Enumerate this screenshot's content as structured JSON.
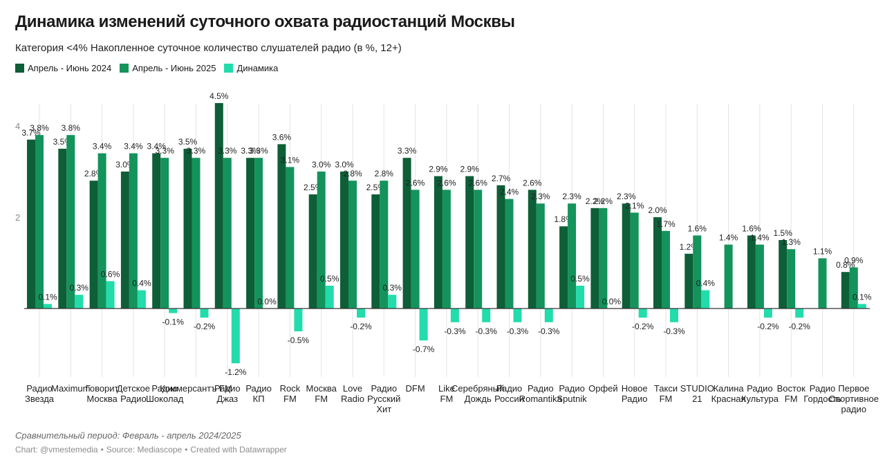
{
  "header": {
    "title": "Динамика изменений суточного охвата радиостанций Москвы",
    "subtitle": "Категория <4% Накопленное суточное количество слушателей радио (в %, 12+)"
  },
  "note": "Сравнительный период: Февраль - апрель 2024/2025",
  "footer": {
    "chart_by": "Chart: @vmestemedia",
    "source": "Source: Mediascope",
    "created": "Created with Datawrapper",
    "separator": "•"
  },
  "colors": {
    "series_2024": "#0e5e37",
    "series_2025": "#14935c",
    "series_change": "#23dcab",
    "grid": "#e3e3e3",
    "axis": "#333333"
  },
  "chart_data": {
    "type": "bar",
    "title": "Динамика изменений суточного охвата радиостанций Москвы",
    "subtitle": "Категория <4% Накопленное суточное количество слушателей радио (в %, 12+)",
    "categories": [
      [
        "Радио",
        "Звезда"
      ],
      [
        "Maximum"
      ],
      [
        "Говорит",
        "Москва"
      ],
      [
        "Детское",
        "Радио"
      ],
      [
        "Радио",
        "Шоколад"
      ],
      [
        "Коммерсантъ FM"
      ],
      [
        "Радио",
        "Джаз"
      ],
      [
        "Радио",
        "КП"
      ],
      [
        "Rock",
        "FM"
      ],
      [
        "Москва",
        "FM"
      ],
      [
        "Love",
        "Radio"
      ],
      [
        "Радио",
        "Русский",
        "Хит"
      ],
      [
        "DFM"
      ],
      [
        "Like",
        "FM"
      ],
      [
        "Серебряный",
        "Дождь"
      ],
      [
        "Радио",
        "России"
      ],
      [
        "Радио",
        "Romantika"
      ],
      [
        "Радио",
        "Sputnik"
      ],
      [
        "Орфей"
      ],
      [
        "Новое",
        "Радио"
      ],
      [
        "Такси",
        "FM"
      ],
      [
        "STUDIO",
        "21"
      ],
      [
        "Калина",
        "Красная"
      ],
      [
        "Радио",
        "Культура"
      ],
      [
        "Восток",
        "FM"
      ],
      [
        "Радио",
        "Гордость"
      ],
      [
        "Первое",
        "Спортивное",
        "радио"
      ]
    ],
    "series": [
      {
        "name": "Апрель - Июнь 2024",
        "values": [
          3.7,
          3.5,
          2.8,
          3.0,
          3.4,
          3.5,
          4.5,
          3.3,
          3.6,
          2.5,
          3.0,
          2.5,
          3.3,
          2.9,
          2.9,
          2.7,
          2.6,
          1.8,
          2.2,
          2.3,
          2.0,
          1.2,
          null,
          1.6,
          1.5,
          null,
          0.8
        ]
      },
      {
        "name": "Апрель - Июнь 2025",
        "values": [
          3.8,
          3.8,
          3.4,
          3.4,
          3.3,
          3.3,
          3.3,
          3.3,
          3.1,
          3.0,
          2.8,
          2.8,
          2.6,
          2.6,
          2.6,
          2.4,
          2.3,
          2.3,
          2.2,
          2.1,
          1.7,
          1.6,
          1.4,
          1.4,
          1.3,
          1.1,
          0.9
        ]
      },
      {
        "name": "Динамика",
        "values": [
          0.1,
          0.3,
          0.6,
          0.4,
          -0.1,
          -0.2,
          -1.2,
          0.0,
          -0.5,
          0.5,
          -0.2,
          0.3,
          -0.7,
          -0.3,
          -0.3,
          -0.3,
          -0.3,
          0.5,
          0.0,
          -0.2,
          -0.3,
          0.4,
          null,
          -0.2,
          -0.2,
          null,
          0.1
        ]
      }
    ],
    "yticks": [
      2,
      4
    ],
    "ylim": [
      -1.2,
      4.5
    ],
    "grid": "vertical",
    "legend": "top-left"
  }
}
